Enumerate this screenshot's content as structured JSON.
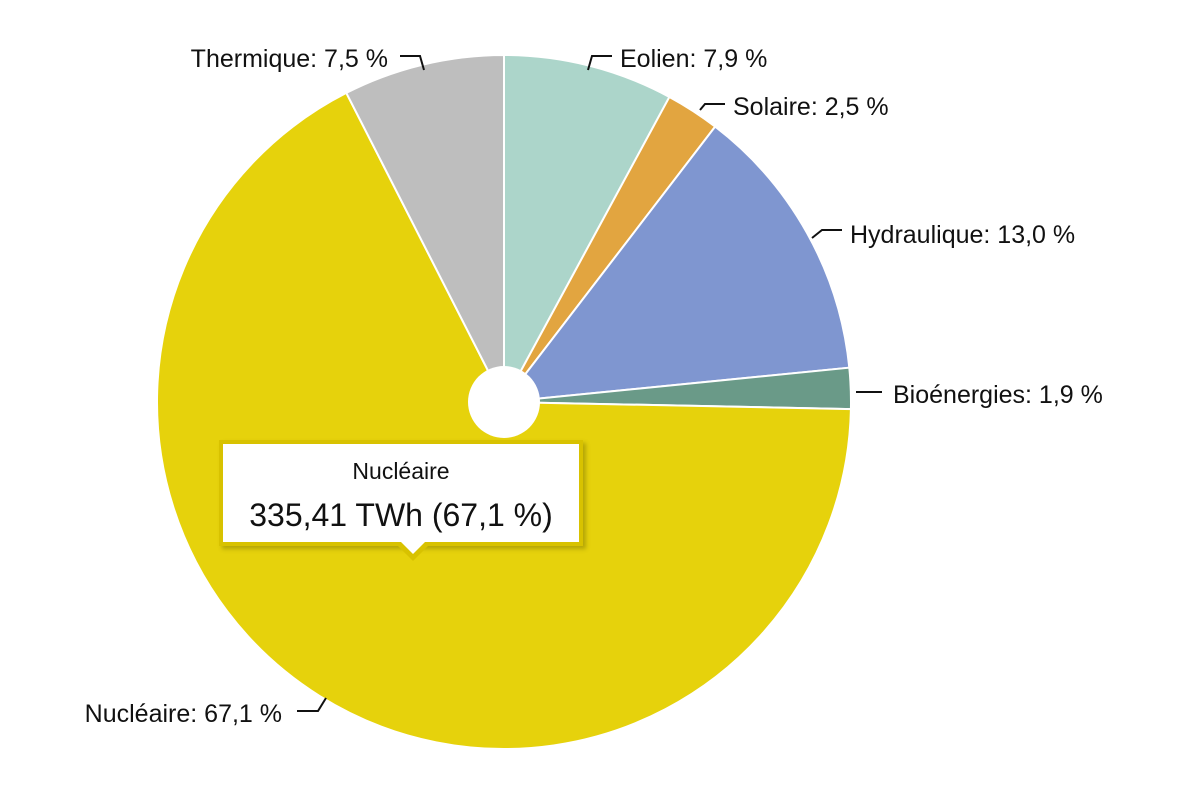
{
  "chart_data": {
    "type": "pie",
    "categories": [
      "Eolien",
      "Solaire",
      "Hydraulique",
      "Bioénergies",
      "Nucléaire",
      "Thermique"
    ],
    "values": [
      7.9,
      2.5,
      13.0,
      1.9,
      67.1,
      7.5
    ],
    "labels": [
      "Eolien: 7,9 %",
      "Solaire: 2,5 %",
      "Hydraulique: 13,0 %",
      "Bioénergies: 1,9 %",
      "Nucléaire: 67,1 %",
      "Thermique: 7,5 %"
    ],
    "colors": [
      "#acd5ca",
      "#e2a540",
      "#7f96d0",
      "#6a9a88",
      "#e6d20c",
      "#bebebe"
    ],
    "tooltip": {
      "title": "Nucléaire",
      "value": "335,41 TWh (67,1 %)"
    }
  }
}
